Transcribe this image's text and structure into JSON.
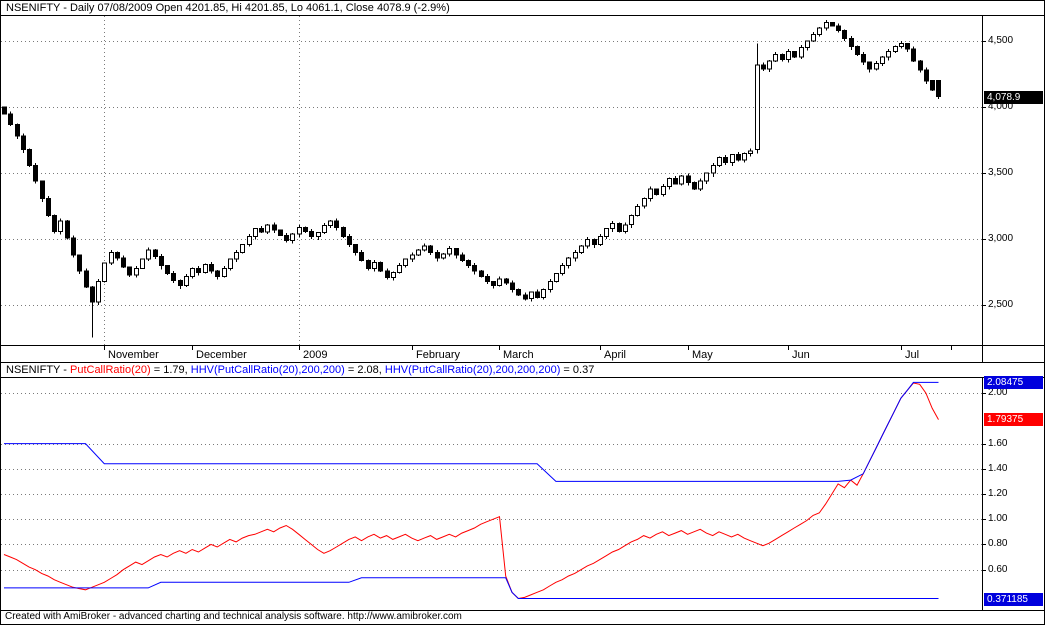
{
  "price_pane": {
    "title": "NSENIFTY - Daily 07/08/2009 Open 4201.85, Hi 4201.85, Lo 4061.1, Close 4078.9 (-2.9%)"
  },
  "indicator_pane": {
    "segments": [
      {
        "text": "NSENIFTY - ",
        "color": "#000000"
      },
      {
        "text": "PutCallRatio(20)",
        "color": "#ff0000"
      },
      {
        "text": " = 1.79, ",
        "color": "#000000"
      },
      {
        "text": "HHV(PutCallRatio(20),200,200)",
        "color": "#0000ff"
      },
      {
        "text": " = 2.08, ",
        "color": "#000000"
      },
      {
        "text": "HHV(PutCallRatio(20),200,200,200)",
        "color": "#0000ff"
      },
      {
        "text": " = 0.37",
        "color": "#000000"
      }
    ]
  },
  "footer": {
    "prefix": "Created with AmiBroker - advanced charting and technical analysis software. ",
    "url": "http://www.amibroker.com"
  },
  "chart_data": [
    {
      "type": "candlestick",
      "title": "NSENIFTY Daily",
      "ylim": [
        2200,
        4690
      ],
      "grid_values": [
        2500,
        3000,
        3500,
        4000,
        4500
      ],
      "y_ticks": [
        {
          "label": "4,500",
          "value": 4500
        },
        {
          "label": "4,000",
          "value": 4000
        },
        {
          "label": "3,500",
          "value": 3500
        },
        {
          "label": "3,000",
          "value": 3000
        },
        {
          "label": "2,500",
          "value": 2500
        }
      ],
      "value_boxes": [
        {
          "label": "4,078.9",
          "value": 4078.9,
          "bg": "#000000"
        }
      ],
      "month_ticks": [
        {
          "label": "November",
          "index": 16
        },
        {
          "label": "December",
          "index": 30
        },
        {
          "label": "2009",
          "index": 47
        },
        {
          "label": "February",
          "index": 65
        },
        {
          "label": "March",
          "index": 79
        },
        {
          "label": "April",
          "index": 95
        },
        {
          "label": "May",
          "index": 109
        },
        {
          "label": "Jun",
          "index": 125
        },
        {
          "label": "Jul",
          "index": 143
        },
        {
          "label": "",
          "index": 151
        }
      ],
      "vgrid_indices": [
        16,
        47
      ],
      "x_end_fraction": 0.958,
      "first_open": 4000,
      "special_candles": {
        "14": [
          null,
          null,
          2255,
          null
        ],
        "120": [
          3680,
          4480,
          3650,
          4320
        ],
        "149": [
          4201.85,
          4201.85,
          4061.1,
          4078.9
        ]
      },
      "closes": [
        3950,
        3870,
        3780,
        3680,
        3560,
        3440,
        3310,
        3180,
        3060,
        3140,
        3010,
        2880,
        2760,
        2640,
        2524,
        2680,
        2820,
        2900,
        2860,
        2790,
        2730,
        2780,
        2850,
        2920,
        2870,
        2800,
        2740,
        2690,
        2650,
        2720,
        2780,
        2750,
        2810,
        2760,
        2720,
        2780,
        2850,
        2900,
        2960,
        3020,
        3080,
        3055,
        3110,
        3070,
        3030,
        2990,
        3040,
        3090,
        3060,
        3020,
        3050,
        3105,
        3140,
        3090,
        3020,
        2960,
        2900,
        2840,
        2780,
        2825,
        2760,
        2710,
        2750,
        2800,
        2850,
        2880,
        2920,
        2950,
        2900,
        2860,
        2890,
        2930,
        2880,
        2840,
        2800,
        2760,
        2720,
        2680,
        2650,
        2700,
        2670,
        2620,
        2580,
        2550,
        2600,
        2560,
        2620,
        2680,
        2740,
        2800,
        2860,
        2900,
        2950,
        3000,
        2960,
        3020,
        3080,
        3120,
        3060,
        3110,
        3180,
        3250,
        3310,
        3380,
        3340,
        3400,
        3460,
        3420,
        3480,
        3430,
        3380,
        3440,
        3500,
        3560,
        3620,
        3580,
        3640,
        3600,
        3650,
        3670,
        4320,
        4290,
        4350,
        4400,
        4360,
        4420,
        4380,
        4450,
        4500,
        4550,
        4600,
        4640,
        4615,
        4580,
        4520,
        4460,
        4400,
        4340,
        4290,
        4330,
        4380,
        4420,
        4460,
        4480,
        4440,
        4350,
        4280,
        4200,
        4130,
        4078.9
      ]
    },
    {
      "type": "line",
      "title": "PutCallRatio(20) with HHV bands",
      "ylim": [
        0.28,
        2.12
      ],
      "grid_values": [
        0.6,
        0.8,
        1.0,
        1.2,
        1.4,
        1.6,
        2.0
      ],
      "y_ticks": [
        {
          "label": "2.00",
          "value": 2.0
        },
        {
          "label": "1.60",
          "value": 1.6
        },
        {
          "label": "1.40",
          "value": 1.4
        },
        {
          "label": "1.20",
          "value": 1.2
        },
        {
          "label": "1.00",
          "value": 1.0
        },
        {
          "label": "0.80",
          "value": 0.8
        },
        {
          "label": "0.60",
          "value": 0.6
        }
      ],
      "value_boxes": [
        {
          "label": "2.08475",
          "value": 2.08475,
          "bg": "#0000dd"
        },
        {
          "label": "1.79375",
          "value": 1.79375,
          "bg": "#ff0000"
        },
        {
          "label": "0.371185",
          "value": 0.371185,
          "bg": "#0000dd"
        }
      ],
      "series": [
        {
          "name": "PutCallRatio(20)",
          "color": "#ff0000",
          "last": 1.79,
          "values": [
            0.72,
            0.7,
            0.68,
            0.65,
            0.62,
            0.6,
            0.57,
            0.55,
            0.52,
            0.5,
            0.48,
            0.46,
            0.45,
            0.44,
            0.46,
            0.48,
            0.5,
            0.53,
            0.56,
            0.6,
            0.63,
            0.66,
            0.64,
            0.67,
            0.7,
            0.72,
            0.7,
            0.73,
            0.75,
            0.73,
            0.76,
            0.74,
            0.77,
            0.8,
            0.78,
            0.81,
            0.84,
            0.82,
            0.85,
            0.87,
            0.88,
            0.9,
            0.92,
            0.9,
            0.93,
            0.95,
            0.92,
            0.88,
            0.84,
            0.8,
            0.76,
            0.73,
            0.75,
            0.78,
            0.81,
            0.84,
            0.86,
            0.83,
            0.86,
            0.88,
            0.85,
            0.87,
            0.84,
            0.86,
            0.88,
            0.85,
            0.83,
            0.85,
            0.87,
            0.84,
            0.86,
            0.88,
            0.86,
            0.89,
            0.91,
            0.93,
            0.96,
            0.98,
            1.0,
            1.02,
            0.55,
            0.42,
            0.371,
            0.38,
            0.4,
            0.42,
            0.44,
            0.47,
            0.5,
            0.52,
            0.55,
            0.57,
            0.6,
            0.63,
            0.65,
            0.68,
            0.71,
            0.74,
            0.76,
            0.79,
            0.82,
            0.84,
            0.87,
            0.85,
            0.88,
            0.9,
            0.87,
            0.89,
            0.91,
            0.88,
            0.9,
            0.92,
            0.89,
            0.87,
            0.9,
            0.88,
            0.86,
            0.88,
            0.85,
            0.83,
            0.81,
            0.79,
            0.81,
            0.84,
            0.87,
            0.9,
            0.93,
            0.96,
            0.99,
            1.03,
            1.05,
            1.12,
            1.2,
            1.28,
            1.25,
            1.31,
            1.27,
            1.36,
            1.46,
            1.56,
            1.66,
            1.76,
            1.86,
            1.96,
            2.02,
            2.08,
            2.07,
            2.0,
            1.88,
            1.79
          ]
        },
        {
          "name": "HHV(PutCallRatio(20),200,200)",
          "color": "#0000ff",
          "last": 2.08,
          "points": [
            [
              0,
              1.6
            ],
            [
              13,
              1.6
            ],
            [
              16,
              1.44
            ],
            [
              85,
              1.44
            ],
            [
              88,
              1.3
            ],
            [
              133,
              1.3
            ],
            [
              135,
              1.31
            ],
            [
              137,
              1.36
            ],
            [
              138,
              1.46
            ],
            [
              139,
              1.56
            ],
            [
              140,
              1.66
            ],
            [
              141,
              1.76
            ],
            [
              142,
              1.86
            ],
            [
              143,
              1.96
            ],
            [
              144,
              2.02
            ],
            [
              145,
              2.08475
            ],
            [
              149,
              2.08475
            ]
          ]
        },
        {
          "name": "HHV(PutCallRatio(20),200,200,200)",
          "color": "#0000ff",
          "last": 0.37,
          "points": [
            [
              0,
              0.455
            ],
            [
              23,
              0.455
            ],
            [
              25,
              0.5
            ],
            [
              55,
              0.5
            ],
            [
              57,
              0.535
            ],
            [
              80,
              0.535
            ],
            [
              81,
              0.42
            ],
            [
              82,
              0.371185
            ],
            [
              149,
              0.371185
            ]
          ]
        }
      ]
    }
  ]
}
